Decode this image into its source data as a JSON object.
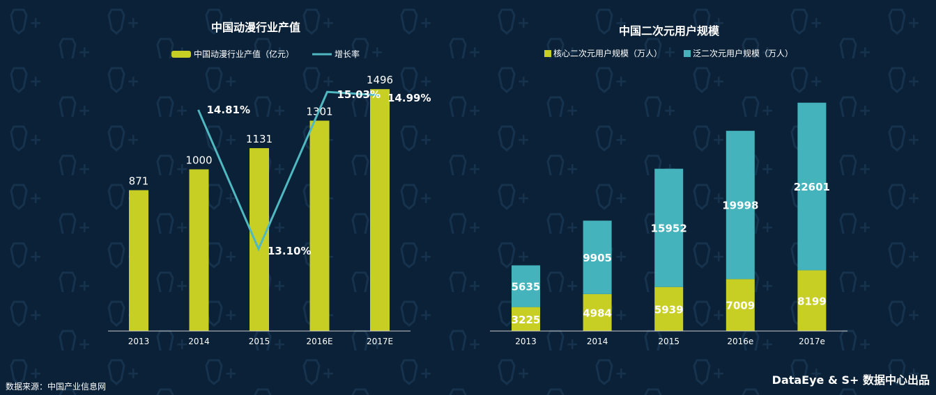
{
  "colors": {
    "background": "#0a2138",
    "bar_yellow": "#c8cf24",
    "line_teal": "#4fb8c1",
    "bar_teal": "#44b3bb"
  },
  "chart_data": [
    {
      "type": "bar",
      "title": "中国动漫行业产值",
      "categories": [
        "2013",
        "2014",
        "2015",
        "2016E",
        "2017E"
      ],
      "series": [
        {
          "name": "中国动漫行业产值（亿元）",
          "type": "bar",
          "values": [
            871,
            1000,
            1131,
            1301,
            1496
          ],
          "labels": [
            "871",
            "1000",
            "1131",
            "1301",
            "1496"
          ]
        },
        {
          "name": "增长率",
          "type": "line",
          "values": [
            null,
            14.81,
            13.1,
            15.03,
            14.99
          ],
          "labels": [
            "",
            "14.81%",
            "13.10%",
            "15.03%",
            "14.99%"
          ]
        }
      ],
      "legend": "top-center",
      "grid": false
    },
    {
      "type": "bar",
      "stacked": true,
      "title": "中国二次元用户规模",
      "categories": [
        "2013",
        "2014",
        "2015",
        "2016e",
        "2017e"
      ],
      "series": [
        {
          "name": "核心二次元用户规模（万人）",
          "values": [
            3225,
            4984,
            5939,
            7009,
            8199
          ]
        },
        {
          "name": "泛二次元用户规模（万人）",
          "values": [
            5635,
            9905,
            15952,
            19998,
            22601
          ]
        }
      ],
      "legend": "top-center",
      "grid": false
    }
  ],
  "footer": {
    "source": "数据来源：中国产业信息网",
    "brand": "DataEye & S+ 数据中心出品"
  }
}
